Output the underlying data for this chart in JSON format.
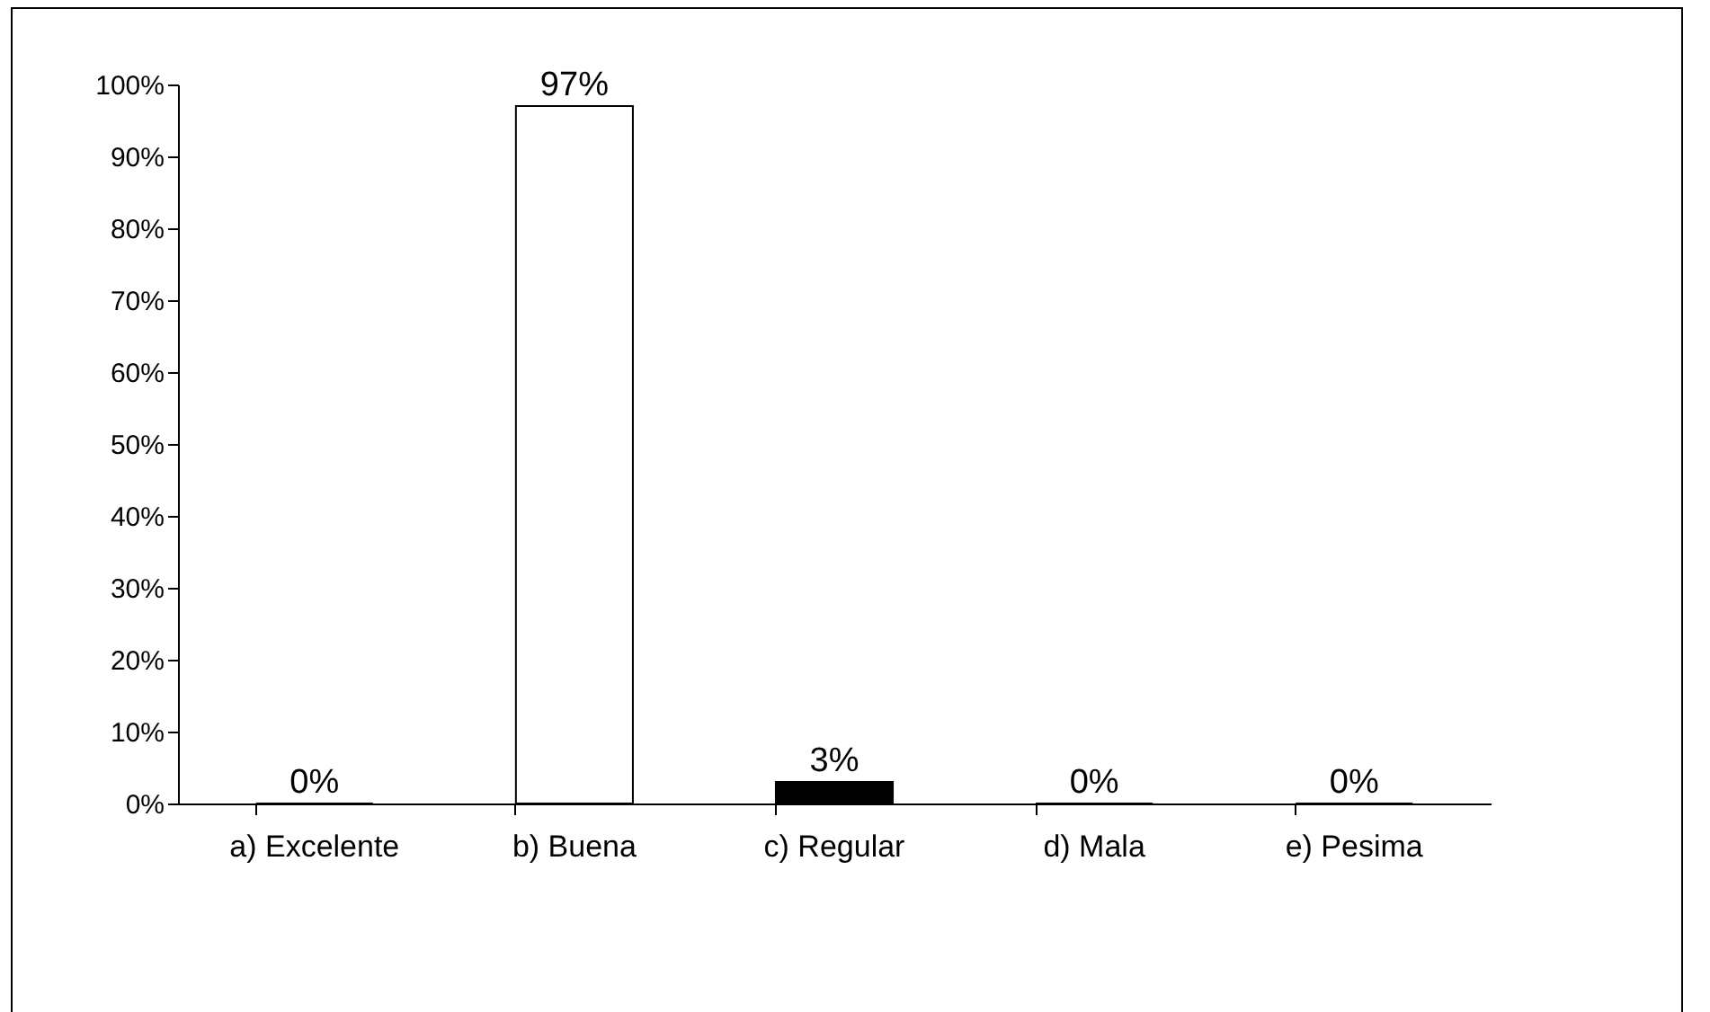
{
  "chart_data": {
    "type": "bar",
    "categories": [
      "a) Excelente",
      "b) Buena",
      "c) Regular",
      "d) Mala",
      "e) Pesima"
    ],
    "values": [
      0,
      97,
      3,
      0,
      0
    ],
    "colors": [
      "#808080",
      "#ffffff",
      "#000000",
      "#a0a0a0",
      "#c0c0c0"
    ],
    "value_labels": [
      "0%",
      "97%",
      "3%",
      "0%",
      "0%"
    ],
    "ylim": [
      0,
      100
    ],
    "yticks": [
      {
        "value": 0,
        "label": "0%"
      },
      {
        "value": 10,
        "label": "10%"
      },
      {
        "value": 20,
        "label": "20%"
      },
      {
        "value": 30,
        "label": "30%"
      },
      {
        "value": 40,
        "label": "40%"
      },
      {
        "value": 50,
        "label": "50%"
      },
      {
        "value": 60,
        "label": "60%"
      },
      {
        "value": 70,
        "label": "70%"
      },
      {
        "value": 80,
        "label": "80%"
      },
      {
        "value": 90,
        "label": "90%"
      },
      {
        "value": 100,
        "label": "100%"
      }
    ],
    "grid": false
  }
}
